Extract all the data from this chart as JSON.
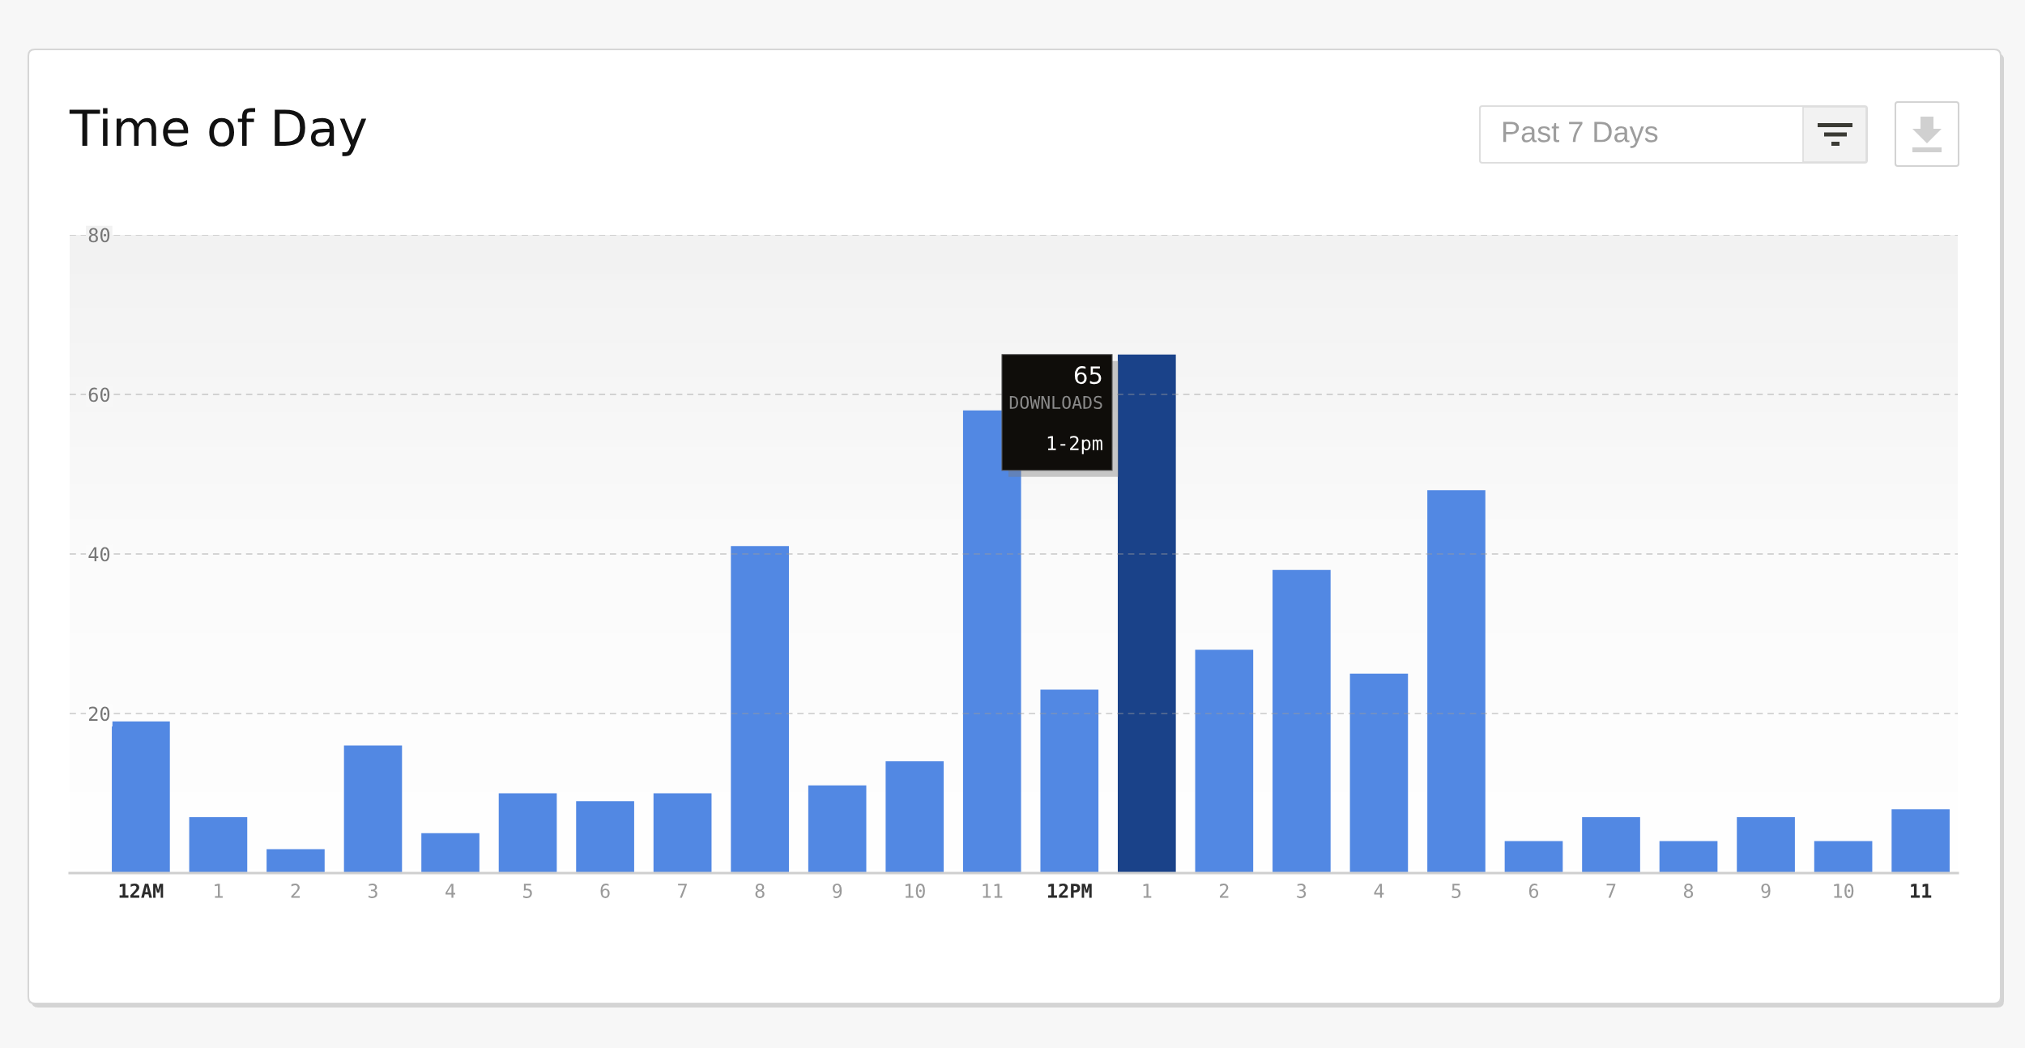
{
  "chart_data": {
    "type": "bar",
    "title": "Time of Day",
    "categories": [
      "12AM",
      "1",
      "2",
      "3",
      "4",
      "5",
      "6",
      "7",
      "8",
      "9",
      "10",
      "11",
      "12PM",
      "1",
      "2",
      "3",
      "4",
      "5",
      "6",
      "7",
      "8",
      "9",
      "10",
      "11"
    ],
    "values": [
      19,
      7,
      3,
      16,
      5,
      10,
      9,
      10,
      41,
      11,
      14,
      58,
      23,
      65,
      28,
      38,
      25,
      48,
      4,
      7,
      4,
      7,
      4,
      8
    ],
    "colors": [
      "#5288e3",
      "#5288e3",
      "#5288e3",
      "#5288e3",
      "#5288e3",
      "#5288e3",
      "#5288e3",
      "#5288e3",
      "#5288e3",
      "#5288e3",
      "#5288e3",
      "#5288e3",
      "#5288e3",
      "#1a4289",
      "#5288e3",
      "#5288e3",
      "#5288e3",
      "#5288e3",
      "#5288e3",
      "#5288e3",
      "#5288e3",
      "#5288e3",
      "#5288e3",
      "#5288e3"
    ],
    "ylim": [
      0,
      80
    ],
    "yticks": [
      20,
      40,
      60,
      80
    ],
    "grid": "y",
    "annotations": [
      "Past 7 Days",
      "65",
      "DOWNLOADS",
      "1-2pm"
    ]
  }
}
